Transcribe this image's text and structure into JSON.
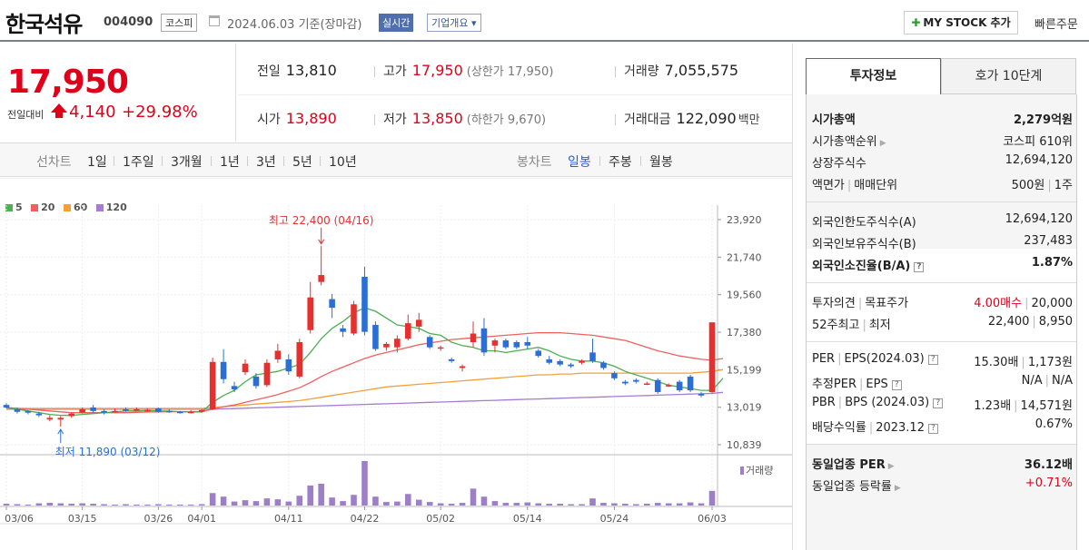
{
  "header": {
    "company_name": "한국석유",
    "code": "004090",
    "market": "코스피",
    "basis_date": "2024.06.03 기준(장마감)",
    "realtime_label": "실시간",
    "overview_label": "기업개요 ▾",
    "mystock_label": "MY STOCK 추가",
    "quick_order_label": "빠른주문"
  },
  "price": {
    "current": "17,950",
    "change_label": "전일대비",
    "change_value": "4,140",
    "change_pct": "+29.98%",
    "prev_close_label": "전일",
    "prev_close": "13,810",
    "high_label": "고가",
    "high": "17,950",
    "upper_limit": "(상한가 17,950)",
    "volume_label": "거래량",
    "volume": "7,055,575",
    "open_label": "시가",
    "open": "13,890",
    "low_label": "저가",
    "low": "13,850",
    "lower_limit": "(하한가 9,670)",
    "amount_label": "거래대금",
    "amount": "122,090",
    "amount_unit": "백만"
  },
  "period_bar": {
    "line_chart_label": "선차트",
    "line_periods": [
      "1일",
      "1주일",
      "3개월",
      "1년",
      "3년",
      "5년",
      "10년"
    ],
    "candle_label": "봉차트",
    "candle_periods": [
      "일봉",
      "주봉",
      "월봉"
    ],
    "active_candle": "일봉"
  },
  "chart_data": {
    "type": "candlestick",
    "legend": [
      {
        "label": "5",
        "color": "#4caf50"
      },
      {
        "label": "20",
        "color": "#f06060"
      },
      {
        "label": "60",
        "color": "#f4a03a"
      },
      {
        "label": "120",
        "color": "#a87ad6"
      }
    ],
    "y_ticks": [
      "23,920",
      "21,740",
      "19,560",
      "17,380",
      "15,199",
      "13,019",
      "10,839"
    ],
    "y_tick_values": [
      23920,
      21740,
      19560,
      17380,
      15199,
      13019,
      10839
    ],
    "ylim": [
      10839,
      23920
    ],
    "x_ticks": [
      "03/06",
      "03/15",
      "03/26",
      "04/01",
      "04/11",
      "04/22",
      "05/02",
      "05/14",
      "05/24",
      "06/03"
    ],
    "high_annotation": "최고 22,400 (04/16)",
    "low_annotation": "최저 11,890 (03/12)",
    "volume_label": "거래량",
    "candles": [
      {
        "o": 13150,
        "c": 13000,
        "h": 13250,
        "l": 12950,
        "v": 0.04
      },
      {
        "o": 12900,
        "c": 12750,
        "h": 13000,
        "l": 12650,
        "v": 0.03
      },
      {
        "o": 12800,
        "c": 12700,
        "h": 12850,
        "l": 12600,
        "v": 0.02
      },
      {
        "o": 12650,
        "c": 12550,
        "h": 12750,
        "l": 12450,
        "v": 0.05
      },
      {
        "o": 12300,
        "c": 12400,
        "h": 12550,
        "l": 12200,
        "v": 0.06
      },
      {
        "o": 12300,
        "c": 12400,
        "h": 12500,
        "l": 11890,
        "v": 0.05
      },
      {
        "o": 12500,
        "c": 12650,
        "h": 12700,
        "l": 12400,
        "v": 0.04
      },
      {
        "o": 12700,
        "c": 12900,
        "h": 13000,
        "l": 12650,
        "v": 0.05
      },
      {
        "o": 13000,
        "c": 12800,
        "h": 13150,
        "l": 12700,
        "v": 0.04
      },
      {
        "o": 12800,
        "c": 12700,
        "h": 12900,
        "l": 12600,
        "v": 0.03
      },
      {
        "o": 12800,
        "c": 12800,
        "h": 12950,
        "l": 12700,
        "v": 0.02
      },
      {
        "o": 12900,
        "c": 12850,
        "h": 13000,
        "l": 12750,
        "v": 0.03
      },
      {
        "o": 12850,
        "c": 12900,
        "h": 13000,
        "l": 12800,
        "v": 0.02
      },
      {
        "o": 12850,
        "c": 12850,
        "h": 12950,
        "l": 12750,
        "v": 0.02
      },
      {
        "o": 12950,
        "c": 12750,
        "h": 13000,
        "l": 12700,
        "v": 0.03
      },
      {
        "o": 12800,
        "c": 12750,
        "h": 12900,
        "l": 12700,
        "v": 0.02
      },
      {
        "o": 12750,
        "c": 12700,
        "h": 12800,
        "l": 12650,
        "v": 0.02
      },
      {
        "o": 12750,
        "c": 12750,
        "h": 12850,
        "l": 12650,
        "v": 0.02
      },
      {
        "o": 12750,
        "c": 12850,
        "h": 12900,
        "l": 12700,
        "v": 0.03
      },
      {
        "o": 12900,
        "c": 15650,
        "h": 15900,
        "l": 12850,
        "v": 0.28
      },
      {
        "o": 15650,
        "c": 14650,
        "h": 16400,
        "l": 14400,
        "v": 0.2
      },
      {
        "o": 14250,
        "c": 14050,
        "h": 14500,
        "l": 13900,
        "v": 0.09
      },
      {
        "o": 15050,
        "c": 15550,
        "h": 15800,
        "l": 14900,
        "v": 0.12
      },
      {
        "o": 14800,
        "c": 14250,
        "h": 15000,
        "l": 14100,
        "v": 0.1
      },
      {
        "o": 14300,
        "c": 15600,
        "h": 15800,
        "l": 14200,
        "v": 0.16
      },
      {
        "o": 15800,
        "c": 16300,
        "h": 16700,
        "l": 15600,
        "v": 0.14
      },
      {
        "o": 15800,
        "c": 15100,
        "h": 16100,
        "l": 14900,
        "v": 0.09
      },
      {
        "o": 14800,
        "c": 16800,
        "h": 17000,
        "l": 14700,
        "v": 0.22
      },
      {
        "o": 17500,
        "c": 19400,
        "h": 20300,
        "l": 17300,
        "v": 0.45
      },
      {
        "o": 20300,
        "c": 20700,
        "h": 22400,
        "l": 20100,
        "v": 0.49
      },
      {
        "o": 19300,
        "c": 18800,
        "h": 19600,
        "l": 18200,
        "v": 0.18
      },
      {
        "o": 17600,
        "c": 17400,
        "h": 17800,
        "l": 17100,
        "v": 0.1
      },
      {
        "o": 17300,
        "c": 19000,
        "h": 19200,
        "l": 17200,
        "v": 0.24
      },
      {
        "o": 20600,
        "c": 17400,
        "h": 21200,
        "l": 17200,
        "v": 1.0
      },
      {
        "o": 17800,
        "c": 16400,
        "h": 18000,
        "l": 16300,
        "v": 0.2
      },
      {
        "o": 16500,
        "c": 16700,
        "h": 16800,
        "l": 16300,
        "v": 0.08
      },
      {
        "o": 16500,
        "c": 17000,
        "h": 17200,
        "l": 16200,
        "v": 0.09
      },
      {
        "o": 17000,
        "c": 17900,
        "h": 18400,
        "l": 16900,
        "v": 0.26
      },
      {
        "o": 17700,
        "c": 18100,
        "h": 18500,
        "l": 17400,
        "v": 0.13
      },
      {
        "o": 17100,
        "c": 16500,
        "h": 17200,
        "l": 16400,
        "v": 0.08
      },
      {
        "o": 16500,
        "c": 16500,
        "h": 16600,
        "l": 16300,
        "v": 0.05
      },
      {
        "o": 15800,
        "c": 15700,
        "h": 15900,
        "l": 15600,
        "v": 0.04
      },
      {
        "o": 15300,
        "c": 15400,
        "h": 15500,
        "l": 15100,
        "v": 0.06
      },
      {
        "o": 16800,
        "c": 17300,
        "h": 18000,
        "l": 16500,
        "v": 0.38
      },
      {
        "o": 17600,
        "c": 16200,
        "h": 18200,
        "l": 16000,
        "v": 0.2
      },
      {
        "o": 16600,
        "c": 16900,
        "h": 17000,
        "l": 16200,
        "v": 0.1
      },
      {
        "o": 16900,
        "c": 16500,
        "h": 17000,
        "l": 16400,
        "v": 0.06
      },
      {
        "o": 16800,
        "c": 16500,
        "h": 16900,
        "l": 16400,
        "v": 0.06
      },
      {
        "o": 16800,
        "c": 16600,
        "h": 17100,
        "l": 16400,
        "v": 0.07
      },
      {
        "o": 16300,
        "c": 16000,
        "h": 16400,
        "l": 15900,
        "v": 0.05
      },
      {
        "o": 15800,
        "c": 15600,
        "h": 16000,
        "l": 15500,
        "v": 0.04
      },
      {
        "o": 15700,
        "c": 15500,
        "h": 15800,
        "l": 15400,
        "v": 0.04
      },
      {
        "o": 15500,
        "c": 15400,
        "h": 15600,
        "l": 15300,
        "v": 0.03
      },
      {
        "o": 15600,
        "c": 15700,
        "h": 15800,
        "l": 15500,
        "v": 0.03
      },
      {
        "o": 16200,
        "c": 15700,
        "h": 17000,
        "l": 15600,
        "v": 0.16
      },
      {
        "o": 15600,
        "c": 15300,
        "h": 15700,
        "l": 15200,
        "v": 0.06
      },
      {
        "o": 15000,
        "c": 14700,
        "h": 15100,
        "l": 14600,
        "v": 0.05
      },
      {
        "o": 14500,
        "c": 14400,
        "h": 14600,
        "l": 14300,
        "v": 0.04
      },
      {
        "o": 14600,
        "c": 14500,
        "h": 14700,
        "l": 14400,
        "v": 0.03
      },
      {
        "o": 14400,
        "c": 14400,
        "h": 14500,
        "l": 14300,
        "v": 0.04
      },
      {
        "o": 14600,
        "c": 13900,
        "h": 14700,
        "l": 13800,
        "v": 0.06
      },
      {
        "o": 14300,
        "c": 14300,
        "h": 14400,
        "l": 14200,
        "v": 0.05
      },
      {
        "o": 14500,
        "c": 14000,
        "h": 14600,
        "l": 13900,
        "v": 0.05
      },
      {
        "o": 14800,
        "c": 14000,
        "h": 14900,
        "l": 13900,
        "v": 0.07
      },
      {
        "o": 13800,
        "c": 13700,
        "h": 13900,
        "l": 13600,
        "v": 0.05
      },
      {
        "o": 13890,
        "c": 17950,
        "h": 17950,
        "l": 13850,
        "v": 0.33
      }
    ],
    "ma5": [
      13000,
      12900,
      12800,
      12700,
      12600,
      12550,
      12550,
      12600,
      12650,
      12700,
      12750,
      12800,
      12800,
      12820,
      12800,
      12790,
      12760,
      12740,
      12750,
      13300,
      13700,
      14000,
      14500,
      14900,
      15000,
      15100,
      15300,
      15500,
      16200,
      17000,
      17600,
      18000,
      18500,
      18800,
      18600,
      18200,
      17800,
      17700,
      17600,
      17300,
      17200,
      16800,
      16600,
      16500,
      16300,
      16300,
      16200,
      16300,
      16400,
      16500,
      16300,
      16000,
      15800,
      15700,
      15700,
      15600,
      15400,
      15100,
      14900,
      14700,
      14500,
      14300,
      14200,
      14100,
      14000,
      14000,
      14700
    ],
    "ma20": [
      13000,
      12950,
      12900,
      12850,
      12800,
      12750,
      12700,
      12700,
      12700,
      12700,
      12700,
      12700,
      12720,
      12740,
      12750,
      12760,
      12760,
      12760,
      12770,
      12900,
      13050,
      13150,
      13300,
      13450,
      13600,
      13750,
      13950,
      14150,
      14450,
      14800,
      15100,
      15350,
      15600,
      15850,
      16050,
      16200,
      16350,
      16500,
      16650,
      16750,
      16850,
      16950,
      17000,
      17050,
      17100,
      17150,
      17200,
      17250,
      17300,
      17350,
      17350,
      17350,
      17300,
      17250,
      17200,
      17100,
      17000,
      16900,
      16700,
      16500,
      16300,
      16150,
      16000,
      15900,
      15800,
      15750,
      15850
    ],
    "ma60": [
      12950,
      12950,
      12950,
      12950,
      12950,
      12950,
      12950,
      12950,
      12950,
      12950,
      12950,
      12950,
      12950,
      12950,
      12950,
      12950,
      12950,
      12950,
      12950,
      13000,
      13050,
      13100,
      13150,
      13200,
      13250,
      13300,
      13350,
      13400,
      13500,
      13600,
      13700,
      13800,
      13900,
      14000,
      14100,
      14200,
      14250,
      14300,
      14350,
      14400,
      14450,
      14500,
      14550,
      14600,
      14650,
      14700,
      14750,
      14800,
      14850,
      14900,
      14900,
      14950,
      14950,
      15000,
      15000,
      15000,
      15000,
      15000,
      15000,
      15000,
      15000,
      15000,
      15000,
      15000,
      15050,
      15100,
      15200
    ],
    "ma120": [
      12900,
      12900,
      12900,
      12900,
      12900,
      12900,
      12900,
      12900,
      12900,
      12900,
      12900,
      12900,
      12900,
      12900,
      12900,
      12900,
      12900,
      12900,
      12900,
      12900,
      12920,
      12940,
      12960,
      12980,
      13000,
      13020,
      13040,
      13060,
      13080,
      13100,
      13120,
      13140,
      13160,
      13180,
      13200,
      13220,
      13240,
      13260,
      13280,
      13300,
      13320,
      13340,
      13360,
      13380,
      13400,
      13420,
      13440,
      13460,
      13480,
      13500,
      13520,
      13540,
      13560,
      13580,
      13600,
      13620,
      13640,
      13660,
      13680,
      13700,
      13720,
      13740,
      13760,
      13780,
      13800,
      13820,
      13880
    ]
  },
  "side": {
    "tab_active": "투자정보",
    "tab_inactive": "호가 10단계",
    "market_cap_label": "시가총액",
    "market_cap": "2,279억원",
    "market_cap_rank_label": "시가총액순위",
    "market_cap_rank": "코스피 610위",
    "shares_label": "상장주식수",
    "shares": "12,694,120",
    "par_label": "액면가",
    "trade_unit_label": "매매단위",
    "par_value": "500원",
    "trade_unit": "1주",
    "foreign_limit_label": "외국인한도주식수(A)",
    "foreign_limit": "12,694,120",
    "foreign_hold_label": "외국인보유주식수(B)",
    "foreign_hold": "237,483",
    "foreign_ratio_label": "외국인소진율(B/A)",
    "foreign_ratio": "1.87%",
    "opinion_label": "투자의견",
    "target_label": "목표주가",
    "opinion": "4.00매수",
    "target": "20,000",
    "w52_high_label": "52주최고",
    "w52_low_label": "최저",
    "w52_high": "22,400",
    "w52_low": "8,950",
    "per_label": "PER",
    "eps_label": "EPS(2024.03)",
    "per": "15.30배",
    "eps": "1,173원",
    "est_per_label": "추정PER",
    "est_eps_label": "EPS",
    "est_per": "N/A",
    "est_eps": "N/A",
    "pbr_label": "PBR",
    "bps_label": "BPS (2024.03)",
    "pbr": "1.23배",
    "bps": "14,571원",
    "div_label": "배당수익률",
    "div_date": "2023.12",
    "div_yield": "0.67%",
    "peer_per_label": "동일업종 PER",
    "peer_per": "36.12배",
    "peer_change_label": "동일업종 등락률",
    "peer_change": "+0.71%"
  }
}
